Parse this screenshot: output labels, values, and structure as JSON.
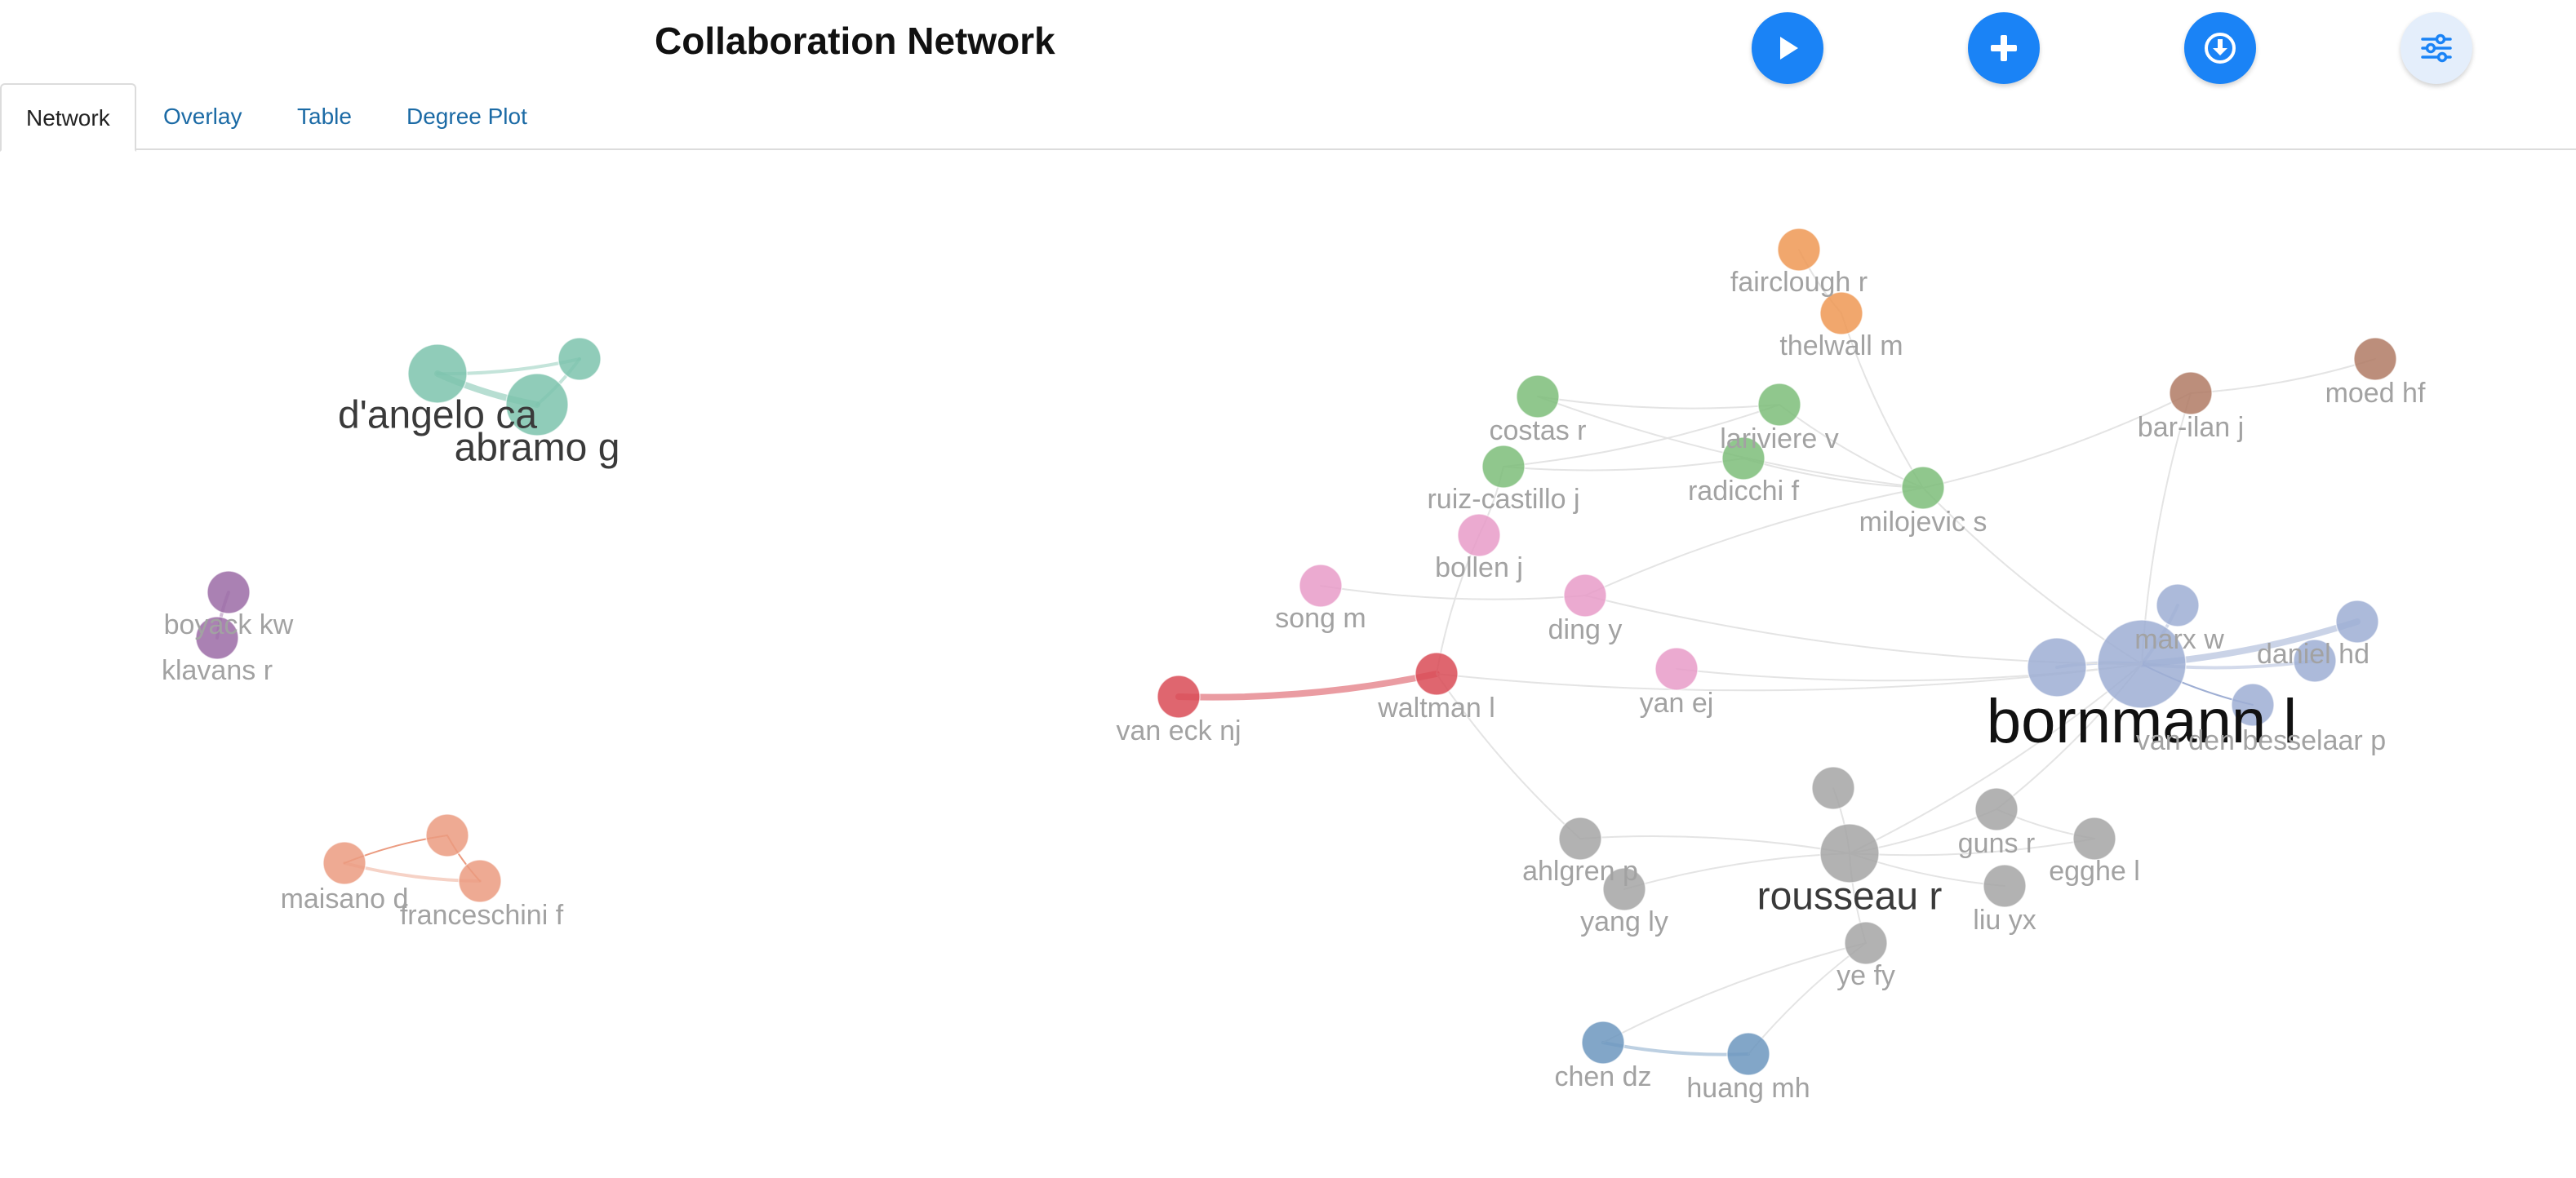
{
  "header": {
    "title": "Collaboration Network"
  },
  "toolbar": [
    {
      "name": "play-button",
      "icon": "play-icon"
    },
    {
      "name": "add-button",
      "icon": "plus-icon"
    },
    {
      "name": "download-button",
      "icon": "download-icon"
    },
    {
      "name": "settings-button",
      "icon": "sliders-icon"
    }
  ],
  "tabs": [
    {
      "label": "Network",
      "active": true
    },
    {
      "label": "Overlay",
      "active": false
    },
    {
      "label": "Table",
      "active": false
    },
    {
      "label": "Degree Plot",
      "active": false
    }
  ],
  "colors": {
    "teal": "#7cc3ad",
    "purple": "#9b6ba6",
    "salmon": "#eb9b80",
    "red": "#d94b56",
    "orange": "#ef9854",
    "green": "#7dbd79",
    "pink": "#e79bc8",
    "brown": "#b07a64",
    "lavender": "#9eaed3",
    "gray": "#a5a5a5",
    "steel": "#6c96be",
    "link_gray": "#e4e4e4",
    "label_gray": "#a2a2a2",
    "label_dark": "#3a3a3a",
    "label_black": "#111111"
  },
  "network": {
    "nodes": [
      {
        "id": "dangelo",
        "label": "d'angelo ca",
        "group": "teal",
        "emphasis": "dark"
      },
      {
        "id": "abramo",
        "label": "abramo g",
        "group": "teal",
        "emphasis": "dark"
      },
      {
        "id": "teal3",
        "label": "",
        "group": "teal",
        "emphasis": "none"
      },
      {
        "id": "boyack",
        "label": "boyack kw",
        "group": "purple",
        "emphasis": "light"
      },
      {
        "id": "klavans",
        "label": "klavans r",
        "group": "purple",
        "emphasis": "light"
      },
      {
        "id": "salmon1",
        "label": "",
        "group": "salmon",
        "emphasis": "none"
      },
      {
        "id": "maisano",
        "label": "maisano d",
        "group": "salmon",
        "emphasis": "light"
      },
      {
        "id": "franceschini",
        "label": "franceschini f",
        "group": "salmon",
        "emphasis": "light"
      },
      {
        "id": "vaneck",
        "label": "van eck nj",
        "group": "red",
        "emphasis": "light"
      },
      {
        "id": "waltman",
        "label": "waltman l",
        "group": "red",
        "emphasis": "light"
      },
      {
        "id": "fairclough",
        "label": "fairclough r",
        "group": "orange",
        "emphasis": "light"
      },
      {
        "id": "thelwall",
        "label": "thelwall m",
        "group": "orange",
        "emphasis": "light"
      },
      {
        "id": "costas",
        "label": "costas r",
        "group": "green",
        "emphasis": "light"
      },
      {
        "id": "lariviere",
        "label": "lariviere v",
        "group": "green",
        "emphasis": "light"
      },
      {
        "id": "ruiz",
        "label": "ruiz-castillo j",
        "group": "green",
        "emphasis": "light"
      },
      {
        "id": "radicchi",
        "label": "radicchi f",
        "group": "green",
        "emphasis": "light"
      },
      {
        "id": "milojevic",
        "label": "milojevic s",
        "group": "green",
        "emphasis": "light"
      },
      {
        "id": "bollen",
        "label": "bollen j",
        "group": "pink",
        "emphasis": "light"
      },
      {
        "id": "songm",
        "label": "song m",
        "group": "pink",
        "emphasis": "light"
      },
      {
        "id": "dingy",
        "label": "ding y",
        "group": "pink",
        "emphasis": "light"
      },
      {
        "id": "yanej",
        "label": "yan ej",
        "group": "pink",
        "emphasis": "light"
      },
      {
        "id": "barilan",
        "label": "bar-ilan j",
        "group": "brown",
        "emphasis": "light"
      },
      {
        "id": "moed",
        "label": "moed hf",
        "group": "brown",
        "emphasis": "light"
      },
      {
        "id": "bornmann",
        "label": "bornmann l",
        "group": "lavender",
        "emphasis": "black"
      },
      {
        "id": "lav2",
        "label": "",
        "group": "lavender",
        "emphasis": "none"
      },
      {
        "id": "marx",
        "label": "marx w",
        "group": "lavender",
        "emphasis": "light"
      },
      {
        "id": "danielhd",
        "label": "daniel hd",
        "group": "lavender",
        "emphasis": "light"
      },
      {
        "id": "lav5",
        "label": "",
        "group": "lavender",
        "emphasis": "none"
      },
      {
        "id": "vandenbesselaar",
        "label": "van den besselaar p",
        "group": "lavender",
        "emphasis": "light"
      },
      {
        "id": "gray1",
        "label": "",
        "group": "gray",
        "emphasis": "none"
      },
      {
        "id": "rousseau",
        "label": "rousseau r",
        "group": "gray",
        "emphasis": "dark"
      },
      {
        "id": "ahlgren",
        "label": "ahlgren p",
        "group": "gray",
        "emphasis": "light"
      },
      {
        "id": "yangly",
        "label": "yang ly",
        "group": "gray",
        "emphasis": "light"
      },
      {
        "id": "guns",
        "label": "guns r",
        "group": "gray",
        "emphasis": "light"
      },
      {
        "id": "egghe",
        "label": "egghe l",
        "group": "gray",
        "emphasis": "light"
      },
      {
        "id": "liuyx",
        "label": "liu yx",
        "group": "gray",
        "emphasis": "light"
      },
      {
        "id": "yefy",
        "label": "ye fy",
        "group": "gray",
        "emphasis": "light"
      },
      {
        "id": "chendz",
        "label": "chen dz",
        "group": "steel",
        "emphasis": "light"
      },
      {
        "id": "huangmh",
        "label": "huang mh",
        "group": "steel",
        "emphasis": "light"
      }
    ],
    "edges": [
      {
        "source": "dangelo",
        "target": "abramo",
        "strength": "strong",
        "group": "teal"
      },
      {
        "source": "dangelo",
        "target": "teal3",
        "strength": "medium",
        "group": "teal"
      },
      {
        "source": "abramo",
        "target": "teal3",
        "strength": "medium",
        "group": "teal"
      },
      {
        "source": "boyack",
        "target": "klavans",
        "strength": "medium",
        "group": "purple"
      },
      {
        "source": "maisano",
        "target": "franceschini",
        "strength": "medium",
        "group": "salmon"
      },
      {
        "source": "salmon1",
        "target": "maisano",
        "strength": "weak",
        "group": "salmon"
      },
      {
        "source": "salmon1",
        "target": "franceschini",
        "strength": "weak",
        "group": "salmon"
      },
      {
        "source": "vaneck",
        "target": "waltman",
        "strength": "strong",
        "group": "red"
      },
      {
        "source": "bornmann",
        "target": "danielhd",
        "strength": "strong",
        "group": "lavender"
      },
      {
        "source": "bornmann",
        "target": "lav2",
        "strength": "medium",
        "group": "lavender"
      },
      {
        "source": "bornmann",
        "target": "marx",
        "strength": "medium",
        "group": "lavender"
      },
      {
        "source": "bornmann",
        "target": "lav5",
        "strength": "medium",
        "group": "lavender"
      },
      {
        "source": "bornmann",
        "target": "vandenbesselaar",
        "strength": "weak",
        "group": "lavender"
      },
      {
        "source": "chendz",
        "target": "huangmh",
        "strength": "medium",
        "group": "steel"
      },
      {
        "source": "fairclough",
        "target": "thelwall",
        "strength": "weak",
        "group": "gray"
      },
      {
        "source": "thelwall",
        "target": "milojevic",
        "strength": "weak",
        "group": "gray"
      },
      {
        "source": "costas",
        "target": "lariviere",
        "strength": "weak",
        "group": "gray"
      },
      {
        "source": "costas",
        "target": "milojevic",
        "strength": "weak",
        "group": "gray"
      },
      {
        "source": "ruiz",
        "target": "lariviere",
        "strength": "weak",
        "group": "gray"
      },
      {
        "source": "ruiz",
        "target": "radicchi",
        "strength": "weak",
        "group": "gray"
      },
      {
        "source": "radicchi",
        "target": "milojevic",
        "strength": "weak",
        "group": "gray"
      },
      {
        "source": "lariviere",
        "target": "milojevic",
        "strength": "weak",
        "group": "gray"
      },
      {
        "source": "milojevic",
        "target": "bornmann",
        "strength": "weak",
        "group": "gray"
      },
      {
        "source": "milojevic",
        "target": "barilan",
        "strength": "weak",
        "group": "gray"
      },
      {
        "source": "milojevic",
        "target": "dingy",
        "strength": "weak",
        "group": "gray"
      },
      {
        "source": "barilan",
        "target": "moed",
        "strength": "weak",
        "group": "gray"
      },
      {
        "source": "barilan",
        "target": "bornmann",
        "strength": "weak",
        "group": "gray"
      },
      {
        "source": "bollen",
        "target": "ruiz",
        "strength": "weak",
        "group": "gray"
      },
      {
        "source": "bollen",
        "target": "waltman",
        "strength": "weak",
        "group": "gray"
      },
      {
        "source": "songm",
        "target": "dingy",
        "strength": "weak",
        "group": "gray"
      },
      {
        "source": "dingy",
        "target": "bornmann",
        "strength": "weak",
        "group": "gray"
      },
      {
        "source": "waltman",
        "target": "bornmann",
        "strength": "weak",
        "group": "gray"
      },
      {
        "source": "waltman",
        "target": "ahlgren",
        "strength": "weak",
        "group": "gray"
      },
      {
        "source": "yanej",
        "target": "bornmann",
        "strength": "weak",
        "group": "gray"
      },
      {
        "source": "rousseau",
        "target": "bornmann",
        "strength": "weak",
        "group": "gray"
      },
      {
        "source": "rousseau",
        "target": "gray1",
        "strength": "weak",
        "group": "gray"
      },
      {
        "source": "rousseau",
        "target": "ahlgren",
        "strength": "weak",
        "group": "gray"
      },
      {
        "source": "rousseau",
        "target": "yangly",
        "strength": "weak",
        "group": "gray"
      },
      {
        "source": "rousseau",
        "target": "guns",
        "strength": "weak",
        "group": "gray"
      },
      {
        "source": "rousseau",
        "target": "egghe",
        "strength": "weak",
        "group": "gray"
      },
      {
        "source": "rousseau",
        "target": "liuyx",
        "strength": "weak",
        "group": "gray"
      },
      {
        "source": "rousseau",
        "target": "yefy",
        "strength": "weak",
        "group": "gray"
      },
      {
        "source": "guns",
        "target": "bornmann",
        "strength": "weak",
        "group": "gray"
      },
      {
        "source": "guns",
        "target": "egghe",
        "strength": "weak",
        "group": "gray"
      },
      {
        "source": "yefy",
        "target": "chendz",
        "strength": "weak",
        "group": "gray"
      },
      {
        "source": "yefy",
        "target": "huangmh",
        "strength": "weak",
        "group": "gray"
      }
    ]
  }
}
